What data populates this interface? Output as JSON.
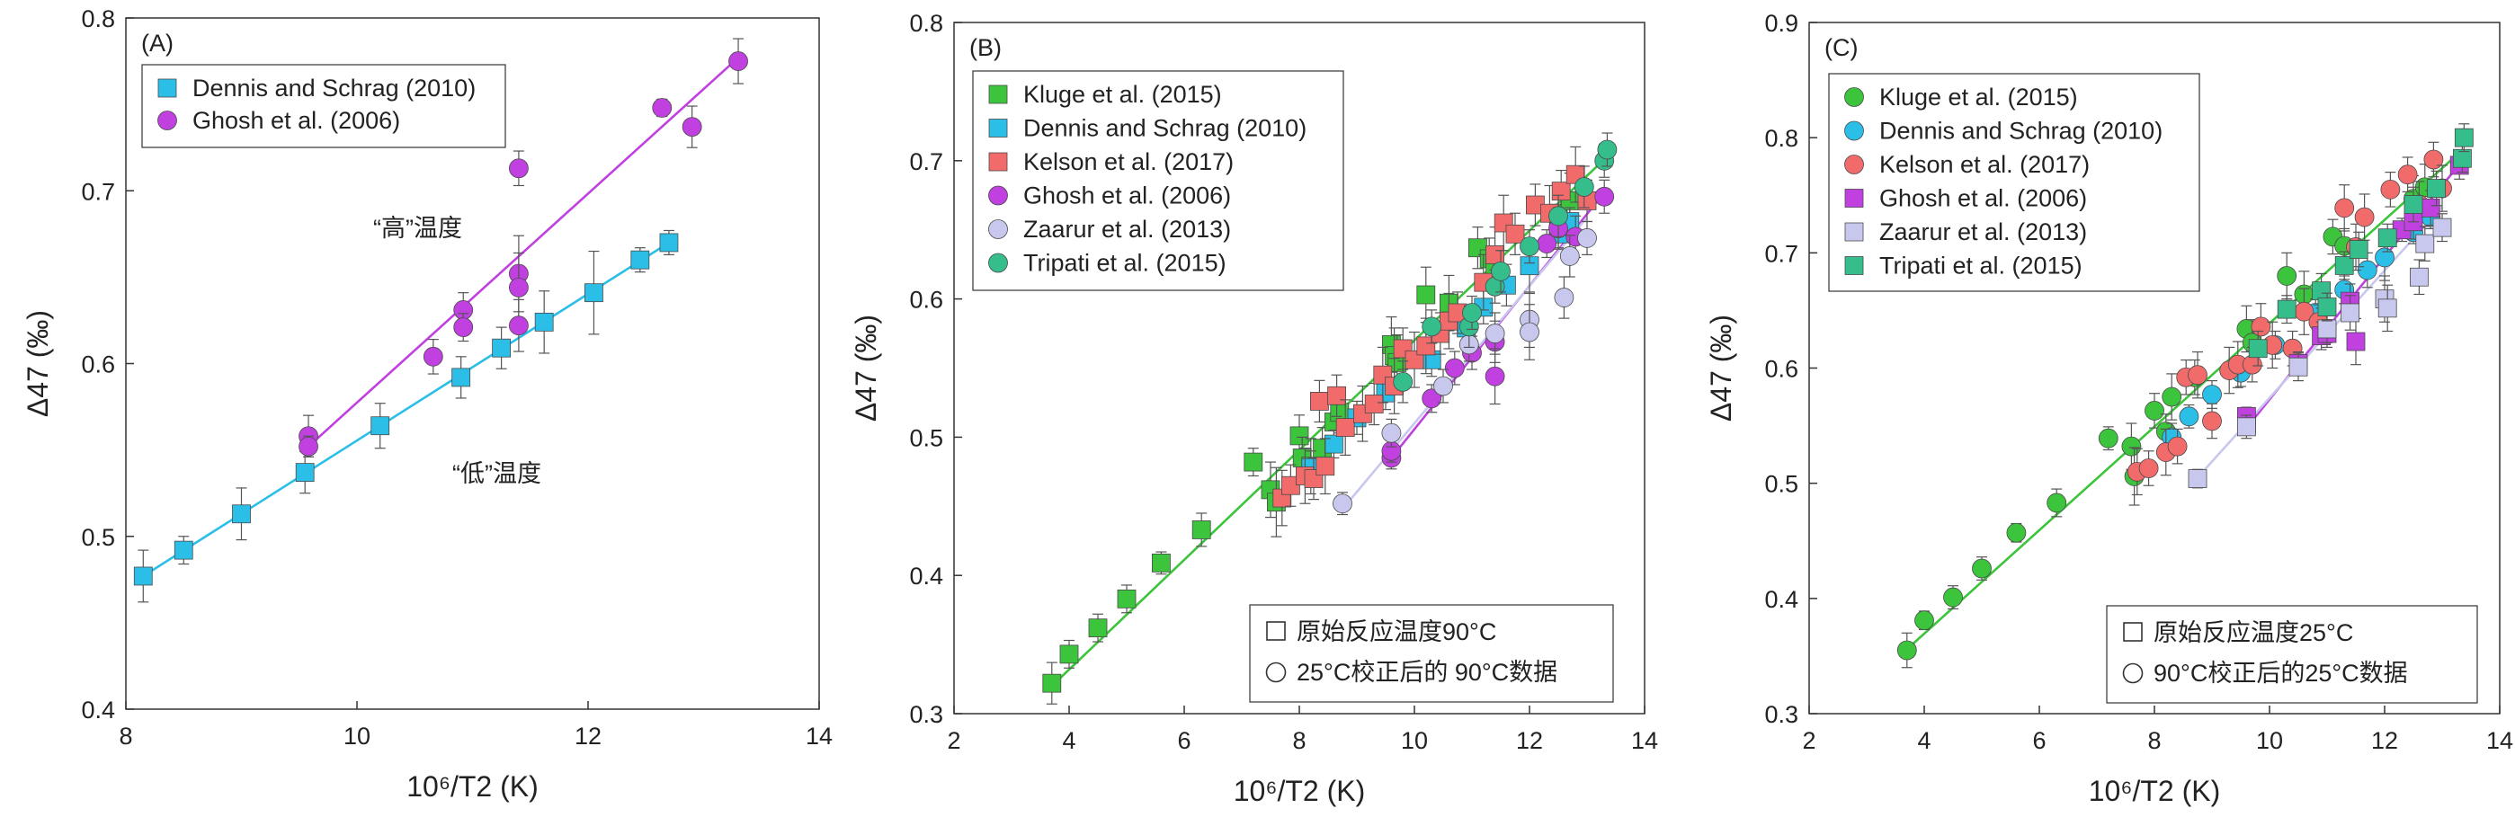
{
  "colors": {
    "Dennis and Schrag (2010)": "#2bbfe8",
    "Ghosh et al. (2006)": "#c040e0",
    "Kluge et al. (2015)": "#3cc43c",
    "Kelson et al. (2017)": "#f26b6b",
    "Zaarur et al. (2013)": "#c8c8ee",
    "Tripati et al. (2015)": "#35bd8c",
    "axis": "#333333",
    "errorbar": "#555555"
  },
  "chart_data": [
    {
      "panel": "(A)",
      "type": "scatter",
      "xlabel": "10⁶/T2 (K)",
      "ylabel": "Δ47 (‰)",
      "xlim": [
        8,
        14
      ],
      "ylim": [
        0.4,
        0.8
      ],
      "xticks": [
        "8",
        "10",
        "12",
        "14"
      ],
      "yticks": [
        "0.4",
        "0.5",
        "0.6",
        "0.7",
        "0.8"
      ],
      "legend_placement": "top-left",
      "annotations": [
        "“高”温度",
        "“低”温度"
      ],
      "series": [
        {
          "name": "Dennis and Schrag (2010)",
          "marker": "square",
          "x": [
            8.15,
            8.5,
            9.0,
            9.55,
            10.2,
            10.9,
            11.25,
            11.62,
            12.05,
            12.45,
            12.7
          ],
          "y": [
            0.477,
            0.492,
            0.513,
            0.537,
            0.564,
            0.592,
            0.609,
            0.624,
            0.641,
            0.66,
            0.67
          ],
          "err": [
            0.015,
            0.008,
            0.015,
            0.012,
            0.013,
            0.012,
            0.012,
            0.018,
            0.024,
            0.007,
            0.007
          ],
          "fit": [
            [
              8.15,
              0.477
            ],
            [
              12.7,
              0.67
            ]
          ]
        },
        {
          "name": "Ghosh et al. (2006)",
          "marker": "circle",
          "x": [
            9.58,
            9.58,
            10.66,
            10.92,
            10.92,
            11.4,
            11.4,
            11.4,
            11.4,
            12.64,
            12.9,
            13.3
          ],
          "y": [
            0.558,
            0.552,
            0.604,
            0.631,
            0.621,
            0.713,
            0.652,
            0.644,
            0.622,
            0.748,
            0.737,
            0.775
          ],
          "err": [
            0.012,
            0.006,
            0.01,
            0.01,
            0.008,
            0.01,
            0.022,
            0.02,
            0.015,
            0.005,
            0.012,
            0.013
          ],
          "fit": [
            [
              9.58,
              0.552
            ],
            [
              13.3,
              0.777
            ]
          ]
        }
      ]
    },
    {
      "panel": "(B)",
      "type": "scatter",
      "xlabel": "10⁶/T2 (K)",
      "ylabel": "Δ47 (‰)",
      "xlim": [
        2,
        14
      ],
      "ylim": [
        0.3,
        0.8
      ],
      "xticks": [
        "2",
        "4",
        "6",
        "8",
        "10",
        "12",
        "14"
      ],
      "yticks": [
        "0.3",
        "0.4",
        "0.5",
        "0.6",
        "0.7",
        "0.8"
      ],
      "legend_placement": "top-left",
      "note": [
        "原始反应温度90°C",
        "25°C校正后的 90°C数据"
      ],
      "series": [
        {
          "name": "Kluge et al. (2015)",
          "marker": "square",
          "x": [
            3.7,
            4.0,
            4.5,
            5.0,
            5.6,
            6.3,
            7.2,
            7.5,
            7.6,
            8.0,
            8.05,
            8.2,
            8.4,
            8.6,
            8.7,
            9.6,
            9.65,
            9.7,
            10.2,
            10.6,
            11.1,
            11.3,
            11.4,
            12.5,
            12.7
          ],
          "y": [
            0.322,
            0.343,
            0.362,
            0.383,
            0.409,
            0.433,
            0.482,
            0.462,
            0.453,
            0.501,
            0.485,
            0.479,
            0.492,
            0.511,
            0.518,
            0.567,
            0.559,
            0.554,
            0.603,
            0.597,
            0.637,
            0.629,
            0.622,
            0.662,
            0.671
          ],
          "err": [
            0.015,
            0.01,
            0.01,
            0.01,
            0.008,
            0.012,
            0.01,
            0.02,
            0.025,
            0.015,
            0.015,
            0.02,
            0.015,
            0.015,
            0.015,
            0.02,
            0.02,
            0.02,
            0.02,
            0.02,
            0.015,
            0.015,
            0.015,
            0.02,
            0.02
          ],
          "fit": [
            [
              3.7,
              0.32
            ],
            [
              13.3,
              0.701
            ]
          ]
        },
        {
          "name": "Dennis and Schrag (2010)",
          "marker": "square",
          "x": [
            8.2,
            8.6,
            9.0,
            9.5,
            10.3,
            10.9,
            11.2,
            11.6,
            12.0,
            12.5,
            12.7
          ],
          "y": [
            0.478,
            0.495,
            0.514,
            0.532,
            0.556,
            0.579,
            0.594,
            0.61,
            0.624,
            0.647,
            0.656
          ],
          "err": [
            0.012,
            0.01,
            0.012,
            0.012,
            0.012,
            0.012,
            0.012,
            0.015,
            0.02,
            0.01,
            0.01
          ]
        },
        {
          "name": "Kelson et al. (2017)",
          "marker": "square",
          "x": [
            7.7,
            7.85,
            8.1,
            8.25,
            8.35,
            8.45,
            8.65,
            8.8,
            9.1,
            9.3,
            9.45,
            9.65,
            9.8,
            10.0,
            10.2,
            10.45,
            10.6,
            10.75,
            11.2,
            11.4,
            11.55,
            11.75,
            12.1,
            12.35,
            12.55,
            12.8,
            13.0
          ],
          "y": [
            0.456,
            0.465,
            0.472,
            0.47,
            0.526,
            0.479,
            0.53,
            0.507,
            0.517,
            0.524,
            0.545,
            0.537,
            0.564,
            0.556,
            0.566,
            0.575,
            0.584,
            0.59,
            0.612,
            0.632,
            0.655,
            0.647,
            0.668,
            0.662,
            0.678,
            0.69,
            0.671
          ],
          "err": [
            0.02,
            0.015,
            0.02,
            0.015,
            0.015,
            0.02,
            0.015,
            0.02,
            0.02,
            0.015,
            0.02,
            0.02,
            0.015,
            0.02,
            0.02,
            0.015,
            0.02,
            0.015,
            0.02,
            0.02,
            0.02,
            0.015,
            0.015,
            0.02,
            0.015,
            0.02,
            0.015
          ]
        },
        {
          "name": "Ghosh et al. (2006)",
          "marker": "circle",
          "x": [
            9.6,
            9.6,
            10.3,
            10.7,
            11.0,
            11.4,
            11.4,
            12.3,
            12.5,
            12.8,
            13.3
          ],
          "y": [
            0.485,
            0.49,
            0.528,
            0.55,
            0.561,
            0.569,
            0.544,
            0.64,
            0.651,
            0.645,
            0.674
          ],
          "err": [
            0.008,
            0.008,
            0.01,
            0.012,
            0.012,
            0.015,
            0.02,
            0.01,
            0.015,
            0.015,
            0.012
          ],
          "fit": [
            [
              9.6,
              0.485
            ],
            [
              13.3,
              0.677
            ]
          ]
        },
        {
          "name": "Zaarur et al. (2013)",
          "marker": "circle",
          "x": [
            8.75,
            9.6,
            10.5,
            10.95,
            11.4,
            12.0,
            12.0,
            12.6,
            12.7,
            13.0
          ],
          "y": [
            0.452,
            0.503,
            0.537,
            0.567,
            0.575,
            0.585,
            0.576,
            0.601,
            0.631,
            0.644
          ],
          "err": [
            0.008,
            0.01,
            0.012,
            0.012,
            0.015,
            0.02,
            0.02,
            0.015,
            0.015,
            0.012
          ],
          "fit": [
            [
              8.75,
              0.448
            ],
            [
              13.0,
              0.659
            ]
          ]
        },
        {
          "name": "Tripati et al. (2015)",
          "marker": "circle",
          "x": [
            9.8,
            10.3,
            10.95,
            11.0,
            11.4,
            11.5,
            12.0,
            12.5,
            12.95,
            13.3,
            13.35
          ],
          "y": [
            0.54,
            0.58,
            0.58,
            0.59,
            0.609,
            0.62,
            0.638,
            0.66,
            0.681,
            0.7,
            0.708
          ],
          "err": [
            0.015,
            0.012,
            0.015,
            0.012,
            0.012,
            0.015,
            0.012,
            0.015,
            0.015,
            0.012,
            0.012
          ]
        }
      ]
    },
    {
      "panel": "(C)",
      "type": "scatter",
      "xlabel": "10⁶/T2 (K)",
      "ylabel": "Δ47 (‰)",
      "xlim": [
        2,
        14
      ],
      "ylim": [
        0.3,
        0.9
      ],
      "xticks": [
        "2",
        "4",
        "6",
        "8",
        "10",
        "12",
        "14"
      ],
      "yticks": [
        "0.3",
        "0.4",
        "0.5",
        "0.6",
        "0.7",
        "0.8",
        "0.9"
      ],
      "legend_placement": "top-left",
      "note": [
        "原始反应温度25°C",
        "90°C校正后的25°C数据"
      ],
      "series": [
        {
          "name": "Kluge et al. (2015)",
          "marker": "circle",
          "x": [
            3.7,
            4.0,
            4.5,
            5.0,
            5.6,
            6.3,
            7.2,
            7.6,
            7.65,
            8.0,
            8.2,
            8.3,
            8.7,
            9.6,
            9.7,
            10.3,
            10.6,
            11.1,
            11.3,
            12.5,
            12.7
          ],
          "y": [
            0.355,
            0.381,
            0.401,
            0.426,
            0.457,
            0.483,
            0.539,
            0.532,
            0.506,
            0.563,
            0.545,
            0.575,
            0.592,
            0.634,
            0.622,
            0.68,
            0.664,
            0.714,
            0.706,
            0.747,
            0.757
          ],
          "err": [
            0.015,
            0.008,
            0.01,
            0.01,
            0.008,
            0.012,
            0.01,
            0.02,
            0.025,
            0.015,
            0.015,
            0.02,
            0.015,
            0.02,
            0.02,
            0.02,
            0.02,
            0.015,
            0.015,
            0.02,
            0.02
          ],
          "fit": [
            [
              3.7,
              0.356
            ],
            [
              13.3,
              0.787
            ]
          ]
        },
        {
          "name": "Dennis and Schrag (2010)",
          "marker": "circle",
          "x": [
            8.3,
            8.6,
            9.0,
            9.5,
            10.1,
            10.8,
            11.3,
            11.7,
            12.0,
            12.5,
            12.8
          ],
          "y": [
            0.54,
            0.558,
            0.577,
            0.596,
            0.62,
            0.648,
            0.668,
            0.685,
            0.696,
            0.718,
            0.731
          ],
          "err": [
            0.012,
            0.01,
            0.012,
            0.012,
            0.012,
            0.012,
            0.012,
            0.015,
            0.02,
            0.01,
            0.01
          ]
        },
        {
          "name": "Kelson et al. (2017)",
          "marker": "circle",
          "x": [
            7.7,
            7.9,
            8.2,
            8.4,
            8.55,
            8.75,
            9.0,
            9.3,
            9.45,
            9.7,
            9.85,
            10.05,
            10.4,
            10.6,
            10.85,
            11.3,
            11.5,
            11.65,
            12.1,
            12.4,
            12.6,
            12.85,
            13.0
          ],
          "y": [
            0.51,
            0.513,
            0.527,
            0.532,
            0.592,
            0.594,
            0.554,
            0.598,
            0.603,
            0.603,
            0.636,
            0.62,
            0.617,
            0.649,
            0.64,
            0.739,
            0.705,
            0.731,
            0.755,
            0.768,
            0.742,
            0.781,
            0.756
          ],
          "err": [
            0.02,
            0.015,
            0.02,
            0.015,
            0.015,
            0.02,
            0.015,
            0.02,
            0.02,
            0.015,
            0.02,
            0.02,
            0.015,
            0.02,
            0.015,
            0.02,
            0.02,
            0.02,
            0.015,
            0.015,
            0.02,
            0.015,
            0.02
          ]
        },
        {
          "name": "Ghosh et al. (2006)",
          "marker": "square",
          "x": [
            9.6,
            9.6,
            10.5,
            10.9,
            11.0,
            11.4,
            11.5,
            12.3,
            12.5,
            12.8,
            13.3
          ],
          "y": [
            0.551,
            0.558,
            0.604,
            0.628,
            0.63,
            0.658,
            0.623,
            0.72,
            0.727,
            0.739,
            0.776
          ],
          "err": [
            0.008,
            0.008,
            0.01,
            0.012,
            0.012,
            0.015,
            0.02,
            0.01,
            0.015,
            0.015,
            0.012
          ],
          "fit": [
            [
              9.6,
              0.548
            ],
            [
              13.3,
              0.777
            ]
          ]
        },
        {
          "name": "Zaarur et al. (2013)",
          "marker": "square",
          "x": [
            8.75,
            9.6,
            10.5,
            11.0,
            11.4,
            12.0,
            12.05,
            12.6,
            12.7,
            13.0
          ],
          "y": [
            0.504,
            0.549,
            0.601,
            0.634,
            0.648,
            0.66,
            0.652,
            0.679,
            0.708,
            0.722
          ],
          "err": [
            0.008,
            0.01,
            0.012,
            0.012,
            0.015,
            0.02,
            0.02,
            0.015,
            0.015,
            0.012
          ],
          "fit": [
            [
              8.75,
              0.505
            ],
            [
              13.0,
              0.74
            ]
          ]
        },
        {
          "name": "Tripati et al. (2015)",
          "marker": "square",
          "x": [
            9.8,
            10.3,
            10.9,
            11.0,
            11.3,
            11.55,
            12.05,
            12.5,
            12.9,
            13.35,
            13.38
          ],
          "y": [
            0.617,
            0.651,
            0.667,
            0.653,
            0.689,
            0.703,
            0.713,
            0.742,
            0.756,
            0.782,
            0.8
          ],
          "err": [
            0.015,
            0.012,
            0.015,
            0.012,
            0.012,
            0.015,
            0.012,
            0.015,
            0.015,
            0.012,
            0.012
          ]
        }
      ]
    }
  ]
}
